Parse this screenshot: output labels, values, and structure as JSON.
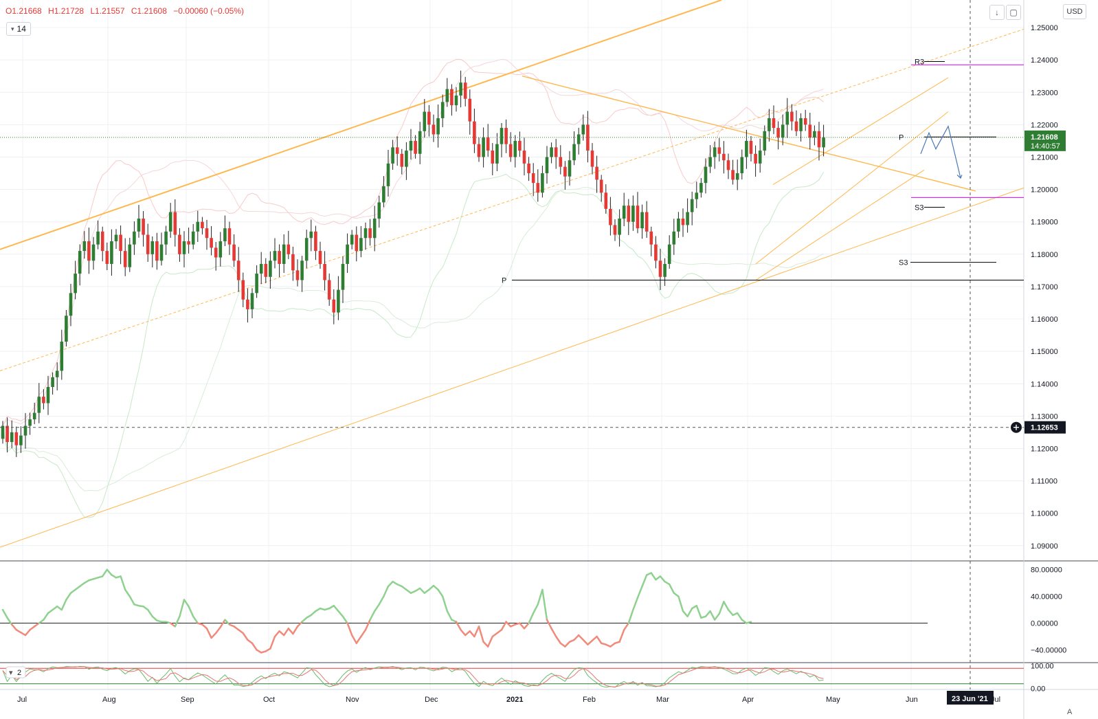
{
  "ohlc": {
    "o": "O1.21668",
    "h": "H1.21728",
    "l": "L1.21557",
    "c": "C1.21608",
    "chg": "−0.00060 (−0.05%)"
  },
  "indicator_badge": {
    "value": "14"
  },
  "toolbar": {
    "currency": "USD",
    "auto_label": "A"
  },
  "colors": {
    "up": "#2e7d32",
    "down": "#e53935",
    "trend": "#ffb74d",
    "pivot_magenta": "#d500f9",
    "forecast": "#4a78b5",
    "osc_pos": "#8fd18f",
    "osc_neg": "#f08a7a"
  },
  "chart_data": {
    "type": "candlestick",
    "price_axis": {
      "ticks": [
        "1.25000",
        "1.24000",
        "1.23000",
        "1.22000",
        "1.21000",
        "1.20000",
        "1.19000",
        "1.18000",
        "1.17000",
        "1.16000",
        "1.15000",
        "1.14000",
        "1.13000",
        "1.12000",
        "1.11000",
        "1.10000",
        "1.09000"
      ],
      "last_price": "1.21608",
      "countdown": "14:40:57",
      "crosshair_price": "1.12653",
      "ylim": [
        1.0855,
        1.2585
      ]
    },
    "time_axis": {
      "labels": [
        "Jul",
        "Aug",
        "Sep",
        "Oct",
        "Nov",
        "Dec",
        "2021",
        "Feb",
        "Mar",
        "Apr",
        "May",
        "Jun"
      ],
      "crosshair_date": "23 Jun '21",
      "partial_label": "Jul"
    },
    "closes": [
      1.127,
      1.122,
      1.125,
      1.121,
      1.124,
      1.127,
      1.129,
      1.131,
      1.136,
      1.134,
      1.139,
      1.142,
      1.144,
      1.153,
      1.161,
      1.168,
      1.174,
      1.181,
      1.184,
      1.178,
      1.183,
      1.187,
      1.181,
      1.177,
      1.184,
      1.186,
      1.181,
      1.176,
      1.183,
      1.187,
      1.191,
      1.186,
      1.18,
      1.184,
      1.178,
      1.183,
      1.187,
      1.193,
      1.186,
      1.18,
      1.184,
      1.183,
      1.187,
      1.19,
      1.188,
      1.185,
      1.182,
      1.179,
      1.184,
      1.188,
      1.183,
      1.178,
      1.172,
      1.166,
      1.163,
      1.168,
      1.174,
      1.177,
      1.173,
      1.178,
      1.181,
      1.177,
      1.183,
      1.18,
      1.175,
      1.172,
      1.178,
      1.185,
      1.187,
      1.181,
      1.177,
      1.172,
      1.166,
      1.162,
      1.169,
      1.177,
      1.183,
      1.186,
      1.181,
      1.185,
      1.188,
      1.185,
      1.191,
      1.196,
      1.201,
      1.208,
      1.213,
      1.211,
      1.207,
      1.212,
      1.215,
      1.211,
      1.218,
      1.224,
      1.22,
      1.217,
      1.222,
      1.227,
      1.231,
      1.226,
      1.229,
      1.233,
      1.228,
      1.221,
      1.214,
      1.21,
      1.216,
      1.212,
      1.208,
      1.214,
      1.219,
      1.214,
      1.21,
      1.215,
      1.212,
      1.208,
      1.205,
      1.202,
      1.199,
      1.205,
      1.21,
      1.213,
      1.21,
      1.207,
      1.204,
      1.209,
      1.214,
      1.217,
      1.22,
      1.212,
      1.207,
      1.203,
      1.199,
      1.194,
      1.189,
      1.186,
      1.191,
      1.195,
      1.19,
      1.195,
      1.188,
      1.193,
      1.187,
      1.183,
      1.178,
      1.173,
      1.177,
      1.183,
      1.187,
      1.191,
      1.189,
      1.193,
      1.197,
      1.199,
      1.202,
      1.207,
      1.21,
      1.213,
      1.211,
      1.209,
      1.206,
      1.203,
      1.205,
      1.21,
      1.215,
      1.211,
      1.208,
      1.212,
      1.218,
      1.222,
      1.219,
      1.216,
      1.22,
      1.224,
      1.221,
      1.218,
      1.222,
      1.22,
      1.216,
      1.218,
      1.213,
      1.216
    ]
  },
  "osc_panel": {
    "ticks": [
      "80.00000",
      "40.00000",
      "0.00000",
      "−40.00000"
    ],
    "values": [
      20,
      8,
      -2,
      -10,
      -14,
      -18,
      -10,
      -5,
      0,
      5,
      15,
      20,
      25,
      20,
      35,
      45,
      50,
      55,
      60,
      64,
      66,
      68,
      70,
      80,
      72,
      68,
      70,
      50,
      40,
      28,
      26,
      25,
      20,
      10,
      4,
      2,
      2,
      0,
      -5,
      10,
      35,
      25,
      10,
      0,
      -2,
      -8,
      -22,
      -15,
      -6,
      5,
      -2,
      -5,
      -10,
      -15,
      -25,
      -30,
      -40,
      -44,
      -42,
      -38,
      -20,
      -12,
      -18,
      -8,
      -16,
      -5,
      2,
      8,
      12,
      18,
      22,
      20,
      22,
      26,
      18,
      10,
      0,
      -18,
      -30,
      -20,
      -10,
      5,
      18,
      28,
      40,
      55,
      62,
      58,
      55,
      50,
      45,
      48,
      52,
      45,
      50,
      56,
      50,
      40,
      18,
      5,
      2,
      -10,
      -18,
      -12,
      -20,
      -5,
      -28,
      -35,
      -20,
      -15,
      -10,
      2,
      -5,
      -2,
      0,
      -8,
      0,
      15,
      28,
      50,
      5,
      -8,
      -20,
      -30,
      -35,
      -28,
      -25,
      -18,
      -25,
      -32,
      -26,
      -20,
      -30,
      -32,
      -35,
      -30,
      -28,
      -10,
      0,
      20,
      38,
      55,
      72,
      75,
      65,
      70,
      62,
      58,
      45,
      40,
      18,
      10,
      22,
      26,
      8,
      10,
      18,
      5,
      14,
      32,
      20,
      12,
      15,
      5,
      0,
      2
    ],
    "ylim": [
      -58,
      92
    ]
  },
  "stoch_panel": {
    "ticks": [
      "100.00",
      "0.00"
    ],
    "badge": "2",
    "ylim": [
      -5,
      110
    ]
  },
  "annotations": {
    "r3": "R3",
    "p_right": "P",
    "s3_right": "S3",
    "s3_left": "S3",
    "p_left": "P"
  }
}
